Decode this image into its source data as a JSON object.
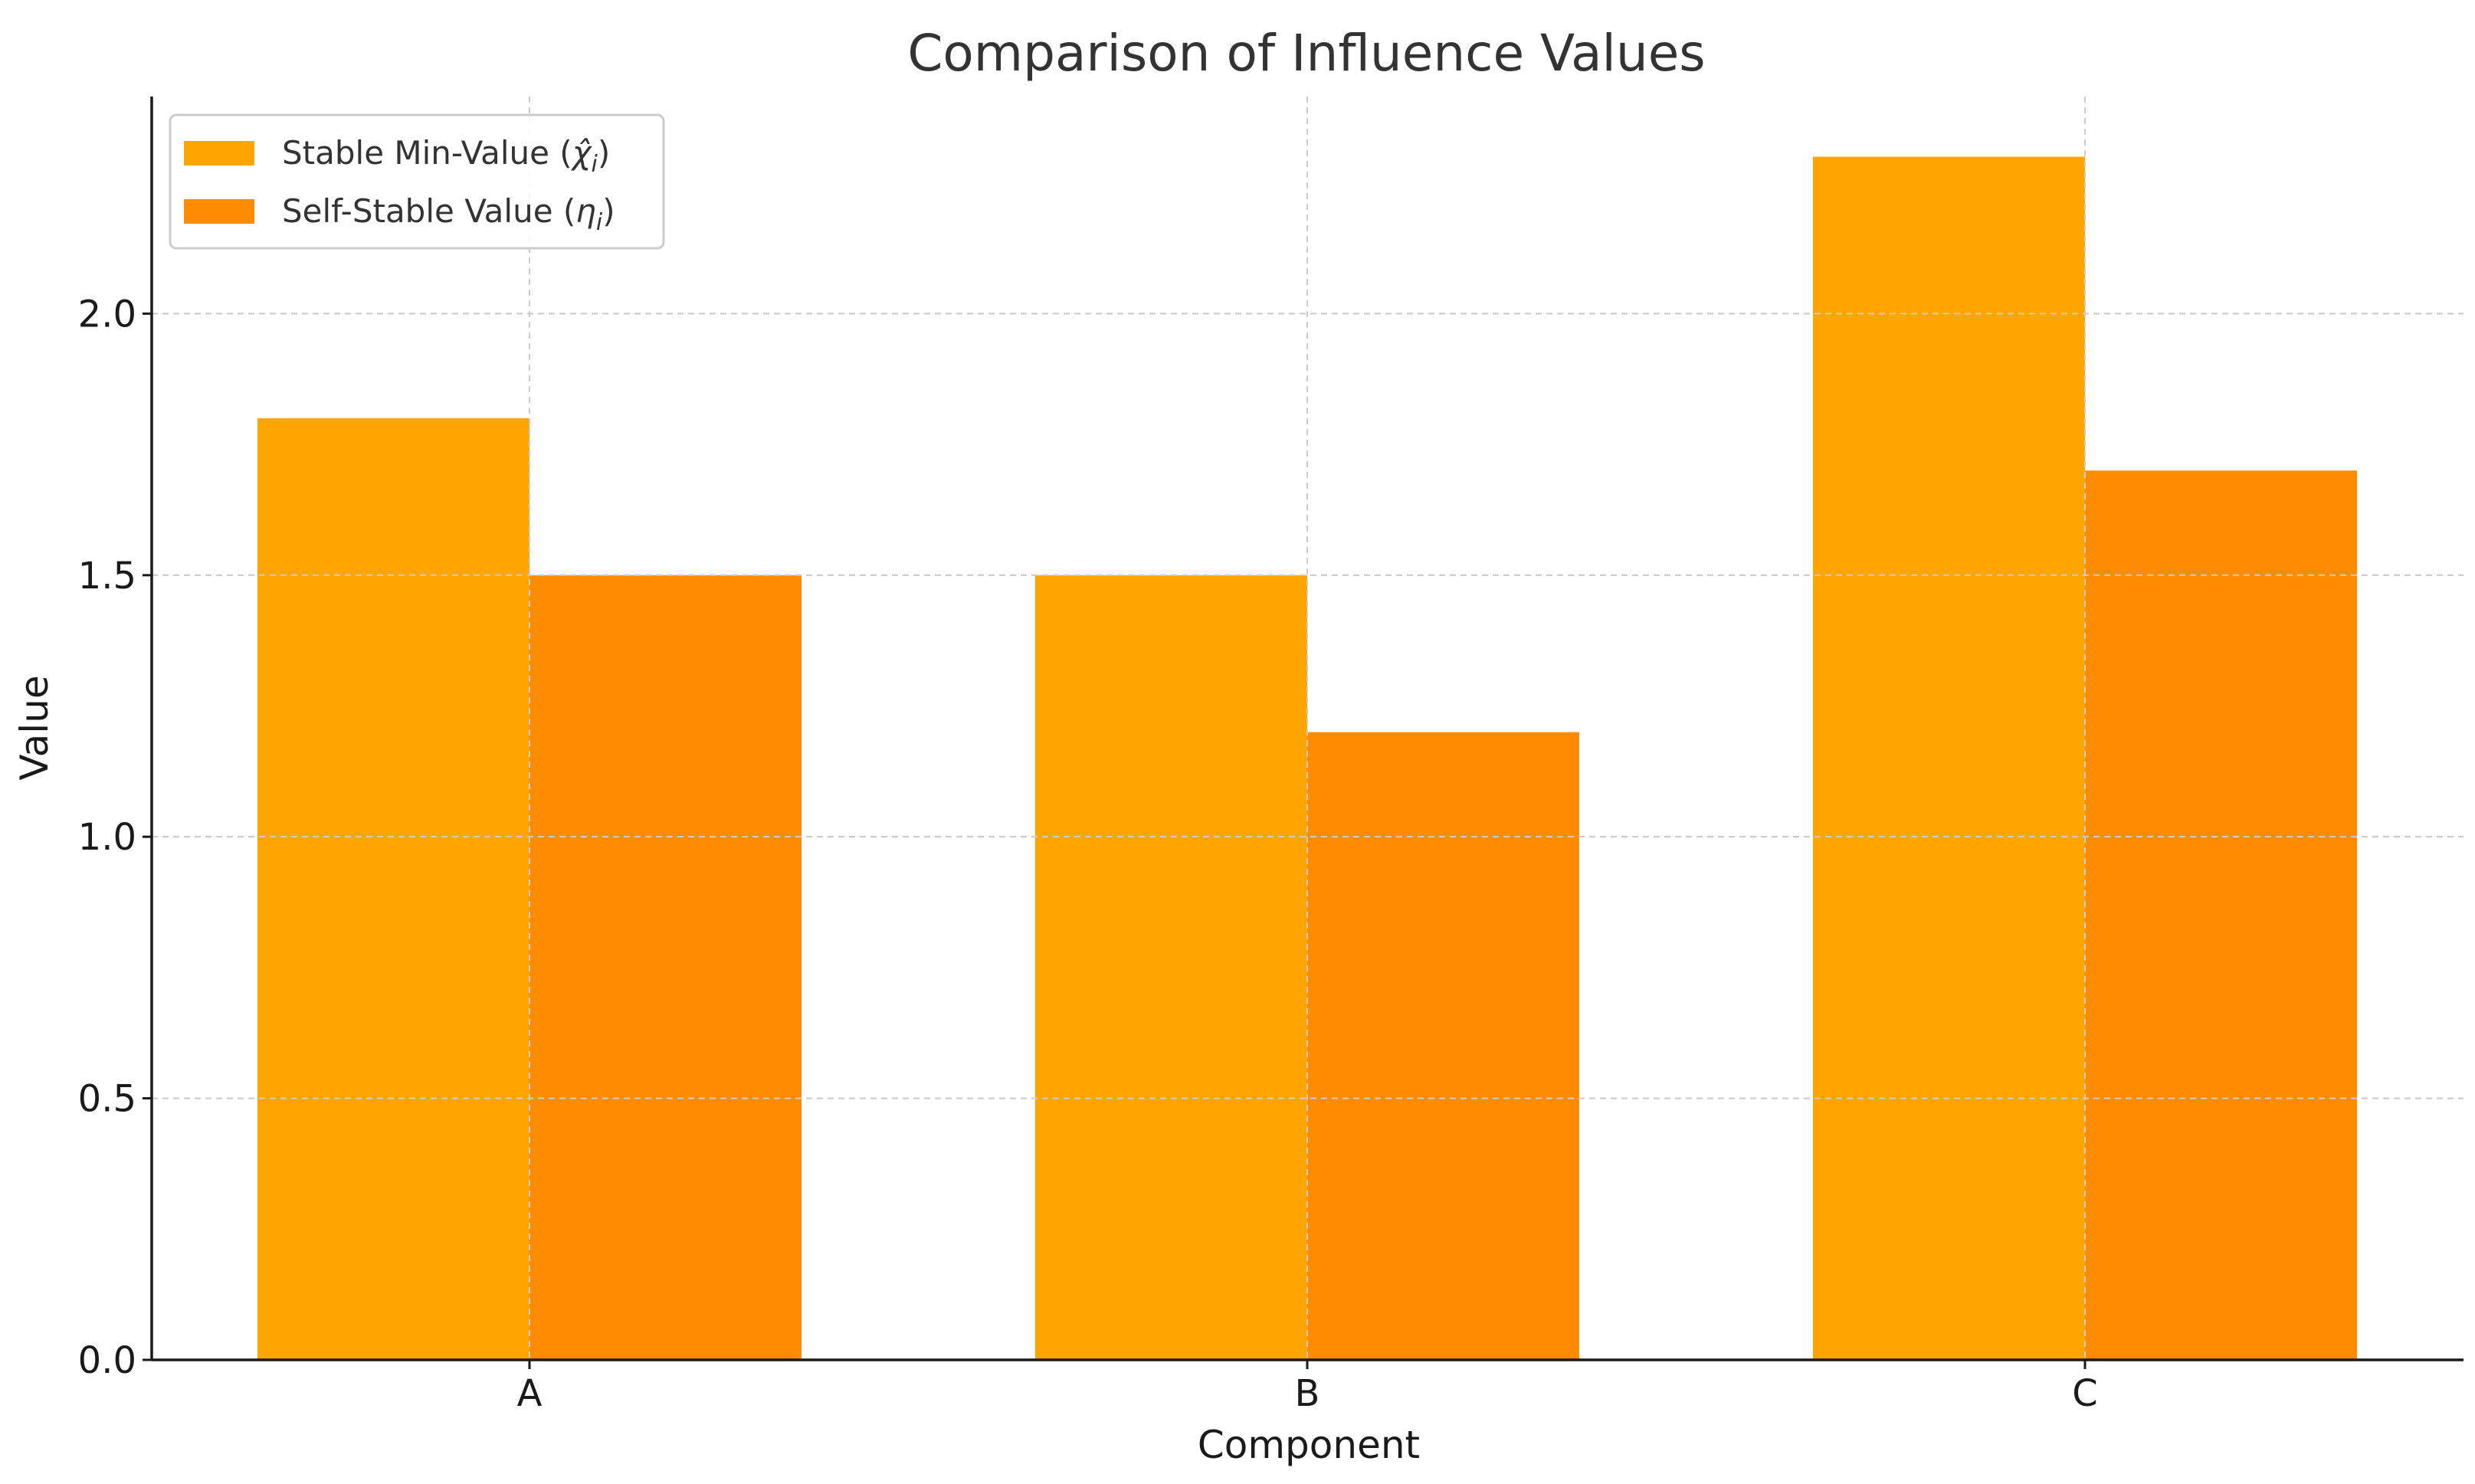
{
  "chart_data": {
    "type": "bar",
    "title": "Comparison of Influence Values",
    "xlabel": "Component",
    "ylabel": "Value",
    "categories": [
      "A",
      "B",
      "C"
    ],
    "series": [
      {
        "name": "Stable Min-Value (χ̂ᵢ)",
        "legend_main": "Stable Min-Value (",
        "legend_symbol": "χ̂",
        "legend_sub": "i",
        "legend_close": ")",
        "color": "#FFA500",
        "values": [
          1.8,
          1.5,
          2.3
        ]
      },
      {
        "name": "Self-Stable Value (ηᵢ)",
        "legend_main": "Self-Stable Value (",
        "legend_symbol": "η",
        "legend_sub": "i",
        "legend_close": ")",
        "color": "#FF8C00",
        "values": [
          1.5,
          1.2,
          1.7
        ]
      }
    ],
    "yticks": [
      0.0,
      0.5,
      1.0,
      1.5,
      2.0
    ],
    "ytick_labels": [
      "0.0",
      "0.5",
      "1.0",
      "1.5",
      "2.0"
    ],
    "ylim": [
      0,
      2.415
    ],
    "grid": true,
    "legend_position": "top-left"
  }
}
